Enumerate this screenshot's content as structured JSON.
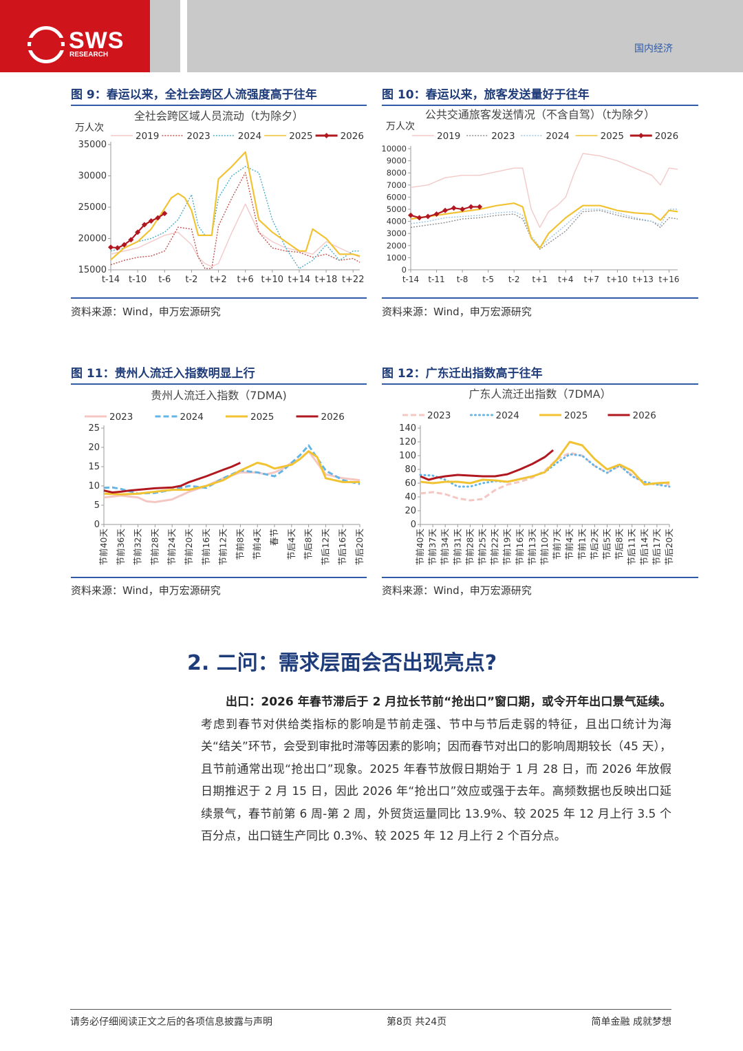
{
  "header": {
    "logo_text": "SWS",
    "logo_subtext": "RESEARCH",
    "section": "国内经济"
  },
  "figures": [
    {
      "title": "图 9：春运以来，全社会跨区人流强度高于往年",
      "source": "资料来源：Wind，申万宏源研究"
    },
    {
      "title": "图 10：春运以来，旅客发送量好于往年",
      "source": "资料来源：Wind，申万宏源研究"
    },
    {
      "title": "图 11：贵州人流迁入指数明显上行",
      "source": "资料来源：Wind，申万宏源研究"
    },
    {
      "title": "图 12：广东迁出指数高于往年",
      "source": "资料来源：Wind，申万宏源研究"
    }
  ],
  "chart_data": [
    {
      "type": "line",
      "title": "全社会跨区域人员流动（t为除夕）",
      "ylabel": "万人次",
      "ylim": [
        15000,
        35000
      ],
      "yticks": [
        "35000",
        "30000",
        "25000",
        "20000",
        "15000"
      ],
      "x_tick_labels": [
        "t-14",
        "t-10",
        "t-6",
        "t-2",
        "t+2",
        "t+6",
        "t+10",
        "t+14",
        "t+18",
        "t+22"
      ],
      "x_range": [
        -14,
        23
      ],
      "series": [
        {
          "name": "2019",
          "color": "#f2c9c9",
          "style": "solid",
          "x": [
            -14,
            -12,
            -10,
            -8,
            -6,
            -4,
            -2,
            -1,
            0,
            1,
            2,
            4,
            6,
            8,
            10,
            12,
            14,
            16,
            18,
            20,
            22,
            23
          ],
          "values": [
            17500,
            18000,
            18500,
            19500,
            20500,
            21000,
            19000,
            17000,
            16000,
            15500,
            16000,
            21000,
            25500,
            21000,
            19500,
            18500,
            18000,
            17500,
            19500,
            18500,
            17500,
            17000
          ]
        },
        {
          "name": "2023",
          "color": "#c0504d",
          "style": "dotted",
          "x": [
            -14,
            -12,
            -10,
            -8,
            -6,
            -4,
            -2,
            -1,
            0,
            1,
            2,
            4,
            6,
            8,
            10,
            12,
            14,
            16,
            18,
            20,
            22,
            23
          ],
          "values": [
            15800,
            16500,
            17000,
            17200,
            18000,
            21800,
            21500,
            17000,
            15200,
            15200,
            22000,
            26500,
            30500,
            21000,
            18500,
            18000,
            17800,
            17000,
            17500,
            16500,
            16800,
            16200
          ]
        },
        {
          "name": "2024",
          "color": "#4bacc6",
          "style": "dotted",
          "x": [
            -14,
            -12,
            -10,
            -8,
            -6,
            -4,
            -2,
            -1,
            0,
            1,
            2,
            4,
            6,
            8,
            10,
            12,
            14,
            16,
            18,
            20,
            22,
            23
          ],
          "values": [
            18000,
            18500,
            19500,
            20000,
            21000,
            23000,
            27000,
            22000,
            20500,
            20500,
            26500,
            30000,
            31500,
            30500,
            23000,
            18500,
            15200,
            16500,
            19000,
            16500,
            18000,
            18000
          ]
        },
        {
          "name": "2025",
          "color": "#f1c232",
          "style": "solid",
          "x": [
            -14,
            -12,
            -10,
            -8,
            -6,
            -5,
            -4,
            -3,
            -2,
            -1,
            0,
            1,
            2,
            4,
            6,
            8,
            10,
            12,
            14,
            15,
            16,
            18,
            20,
            22,
            23
          ],
          "values": [
            16600,
            18500,
            19500,
            21500,
            24800,
            26500,
            27200,
            26500,
            24500,
            20500,
            20500,
            20500,
            29500,
            31500,
            33800,
            23000,
            21000,
            19500,
            18000,
            18000,
            21500,
            20000,
            17500,
            17500,
            17200
          ]
        },
        {
          "name": "2026",
          "color": "#b0171f",
          "style": "solid-marker",
          "x": [
            -14,
            -13,
            -12,
            -11,
            -10,
            -9,
            -8,
            -7,
            -6
          ],
          "values": [
            18600,
            18500,
            19000,
            19800,
            21000,
            22200,
            22800,
            23300,
            24000
          ]
        }
      ]
    },
    {
      "type": "line",
      "title": "公共交通旅客发送情况（不含自驾）（t为除夕）",
      "ylabel": "万人次",
      "ylim": [
        0,
        10000
      ],
      "yticks": [
        "10000",
        "9000",
        "8000",
        "7000",
        "6000",
        "5000",
        "4000",
        "3000",
        "2000",
        "1000",
        "0"
      ],
      "x_tick_labels": [
        "t-14",
        "t-11",
        "t-8",
        "t-5",
        "t-2",
        "t+1",
        "t+4",
        "t+7",
        "t+10",
        "t+13",
        "t+16"
      ],
      "x_range": [
        -14,
        17
      ],
      "series": [
        {
          "name": "2019",
          "color": "#f2c9c9",
          "style": "solid",
          "x": [
            -14,
            -12,
            -10,
            -8,
            -6,
            -4,
            -2,
            -1,
            0,
            1,
            2,
            3,
            4,
            5,
            6,
            8,
            10,
            12,
            14,
            15,
            16,
            17
          ],
          "values": [
            6800,
            7000,
            7600,
            7800,
            7800,
            8100,
            8400,
            8400,
            5000,
            3500,
            4800,
            5300,
            6000,
            8000,
            9600,
            9400,
            9000,
            8400,
            7800,
            7000,
            8400,
            8300
          ]
        },
        {
          "name": "2023",
          "color": "#8c8c8c",
          "style": "dotted",
          "x": [
            -14,
            -12,
            -10,
            -8,
            -6,
            -4,
            -2,
            -1,
            0,
            1,
            2,
            4,
            6,
            8,
            10,
            12,
            14,
            15,
            16,
            17
          ],
          "values": [
            3500,
            3700,
            3900,
            4200,
            4300,
            4500,
            4600,
            4200,
            2600,
            1700,
            2200,
            3200,
            4800,
            4900,
            4500,
            4200,
            4000,
            3500,
            4300,
            4200
          ]
        },
        {
          "name": "2024",
          "color": "#9cc3e6",
          "style": "dotted",
          "x": [
            -14,
            -12,
            -10,
            -8,
            -6,
            -4,
            -2,
            -1,
            0,
            1,
            2,
            4,
            6,
            8,
            10,
            12,
            14,
            15,
            16,
            17
          ],
          "values": [
            3800,
            4000,
            4300,
            4400,
            4500,
            4700,
            4800,
            4500,
            2800,
            1900,
            2500,
            3700,
            5000,
            5000,
            4700,
            4300,
            4000,
            3700,
            5000,
            5000
          ]
        },
        {
          "name": "2025",
          "color": "#f1c232",
          "style": "solid",
          "x": [
            -14,
            -12,
            -10,
            -8,
            -6,
            -4,
            -2,
            -1,
            0,
            1,
            2,
            4,
            6,
            8,
            10,
            12,
            14,
            15,
            16,
            17
          ],
          "values": [
            4200,
            4400,
            4600,
            4800,
            5000,
            5300,
            5500,
            5200,
            2600,
            1800,
            3000,
            4300,
            5300,
            5300,
            4900,
            4700,
            4600,
            4100,
            4900,
            4800
          ]
        },
        {
          "name": "2026",
          "color": "#b0171f",
          "style": "solid-marker",
          "x": [
            -14,
            -13,
            -12,
            -11,
            -10,
            -9,
            -8,
            -7,
            -6
          ],
          "values": [
            4500,
            4300,
            4400,
            4600,
            4900,
            5100,
            5000,
            5200,
            5200
          ]
        }
      ]
    },
    {
      "type": "line",
      "title": "贵州人流迁入指数（7DMA)",
      "ylim": [
        0,
        25
      ],
      "yticks": [
        "25",
        "20",
        "15",
        "10",
        "5",
        "0"
      ],
      "x_tick_labels": [
        "节前40天",
        "节前36天",
        "节前32天",
        "节前28天",
        "节前24天",
        "节前20天",
        "节前16天",
        "节前12天",
        "节前8天",
        "节前4天",
        "春节",
        "节后4天",
        "节后8天",
        "节后12天",
        "节后16天",
        "节后20天"
      ],
      "x_range": [
        -40,
        20
      ],
      "series": [
        {
          "name": "2023",
          "color": "#f4c7c3",
          "style": "solid",
          "x": [
            -40,
            -36,
            -32,
            -30,
            -28,
            -24,
            -20,
            -16,
            -12,
            -8,
            -4,
            -2,
            0,
            2,
            4,
            6,
            8,
            12,
            16,
            20
          ],
          "values": [
            7,
            7.5,
            7,
            6,
            5.8,
            6.5,
            8.5,
            10,
            12,
            13.5,
            13.5,
            13,
            13.5,
            14.5,
            16,
            17,
            19,
            13,
            12,
            11.5
          ]
        },
        {
          "name": "2024",
          "color": "#64b5e6",
          "style": "dashed",
          "x": [
            -40,
            -38,
            -36,
            -32,
            -28,
            -24,
            -20,
            -16,
            -12,
            -8,
            -4,
            -2,
            0,
            2,
            4,
            6,
            8,
            12,
            16,
            20
          ],
          "values": [
            9.5,
            9.6,
            9.2,
            8,
            8.2,
            9,
            10,
            9.5,
            12,
            14,
            13.5,
            13,
            12.5,
            14,
            16,
            18,
            20.5,
            14,
            11.5,
            10.5
          ]
        },
        {
          "name": "2025",
          "color": "#f1c232",
          "style": "solid",
          "x": [
            -40,
            -36,
            -32,
            -28,
            -24,
            -20,
            -16,
            -12,
            -8,
            -4,
            -2,
            0,
            2,
            4,
            6,
            8,
            10,
            12,
            16,
            20
          ],
          "values": [
            8,
            7.8,
            8,
            8.5,
            9,
            9,
            10,
            11.5,
            14,
            16,
            15.5,
            14.5,
            15,
            15.5,
            17,
            19,
            17.5,
            12,
            11,
            11
          ]
        },
        {
          "name": "2026",
          "color": "#b0171f",
          "style": "solid",
          "x": [
            -40,
            -38,
            -36,
            -34,
            -32,
            -28,
            -24,
            -22,
            -20,
            -16,
            -12,
            -10,
            -8
          ],
          "values": [
            8.8,
            8.3,
            8.5,
            8.8,
            9,
            9.4,
            9.6,
            10,
            11,
            12.5,
            14.2,
            15,
            16
          ]
        }
      ]
    },
    {
      "type": "line",
      "title": "广东人流迁出指数（7DMA）",
      "ylim": [
        0,
        140
      ],
      "yticks": [
        "140",
        "120",
        "100",
        "80",
        "60",
        "40",
        "20",
        "0"
      ],
      "x_tick_labels": [
        "节前40天",
        "节前37天",
        "节前34天",
        "节前31天",
        "节前28天",
        "节前25天",
        "节前22天",
        "节前19天",
        "节前16天",
        "节前13天",
        "节前10天",
        "节前7天",
        "节前4天",
        "节前1天",
        "节后2天",
        "节后5天",
        "节后8天",
        "节后11天",
        "节后14天",
        "节后17天",
        "节后20天"
      ],
      "x_range": [
        -40,
        20
      ],
      "series": [
        {
          "name": "2023",
          "color": "#f4c7c3",
          "style": "dashed",
          "x": [
            -40,
            -37,
            -34,
            -31,
            -28,
            -25,
            -22,
            -19,
            -16,
            -13,
            -10,
            -7,
            -4,
            -1,
            2,
            5,
            8,
            11,
            14,
            17,
            20
          ],
          "values": [
            45,
            47,
            44,
            38,
            35,
            37,
            50,
            58,
            62,
            68,
            78,
            95,
            104,
            100,
            85,
            75,
            85,
            72,
            60,
            58,
            58
          ]
        },
        {
          "name": "2024",
          "color": "#64b5e6",
          "style": "dotted",
          "x": [
            -40,
            -37,
            -34,
            -31,
            -28,
            -25,
            -22,
            -19,
            -16,
            -13,
            -10,
            -7,
            -4,
            -1,
            2,
            5,
            8,
            11,
            14,
            17,
            20
          ],
          "values": [
            72,
            71,
            65,
            55,
            55,
            60,
            63,
            62,
            66,
            70,
            76,
            90,
            102,
            100,
            85,
            75,
            86,
            70,
            62,
            58,
            55
          ]
        },
        {
          "name": "2025",
          "color": "#f1c232",
          "style": "solid",
          "x": [
            -40,
            -37,
            -34,
            -31,
            -28,
            -25,
            -22,
            -19,
            -16,
            -13,
            -10,
            -7,
            -4,
            -1,
            2,
            5,
            8,
            11,
            14,
            17,
            20
          ],
          "values": [
            62,
            60,
            62,
            62,
            60,
            65,
            64,
            62,
            66,
            70,
            76,
            95,
            120,
            115,
            95,
            80,
            87,
            78,
            58,
            60,
            61
          ]
        },
        {
          "name": "2026",
          "color": "#b0171f",
          "style": "solid",
          "x": [
            -40,
            -38,
            -36,
            -34,
            -31,
            -28,
            -25,
            -22,
            -19,
            -16,
            -13,
            -10,
            -8
          ],
          "values": [
            70,
            65,
            68,
            70,
            72,
            71,
            70,
            70,
            73,
            80,
            88,
            98,
            108
          ]
        }
      ]
    }
  ],
  "section_heading": "2. 二问：需求层面会否出现亮点?",
  "paragraph": {
    "bold_lead": "出口：2026 年春节滞后于 2 月拉长节前“抢出口”窗口期，或令开年出口景气延续。",
    "body": "考虑到春节对供给类指标的影响是节前走强、节中与节后走弱的特征，且出口统计为海关“结关”环节，会受到审批时滞等因素的影响；因而春节对出口的影响周期较长（45 天），且节前通常出现“抢出口”现象。2025 年春节放假日期始于 1 月 28 日，而 2026 年放假日期推迟于 2 月 15 日，因此 2026 年“抢出口”效应或强于去年。高频数据也反映出口延续景气，春节前第 6 周-第 2 周，外贸货运量同比 13.9%、较 2025 年 12 月上行 3.5 个百分点，出口链生产同比 0.3%、较 2025 年 12 月上行 2 个百分点。"
  },
  "footer": {
    "left": "请务必仔细阅读正文之后的各项信息披露与声明",
    "middle": "第8页 共24页",
    "right": "简单金融 成就梦想"
  }
}
